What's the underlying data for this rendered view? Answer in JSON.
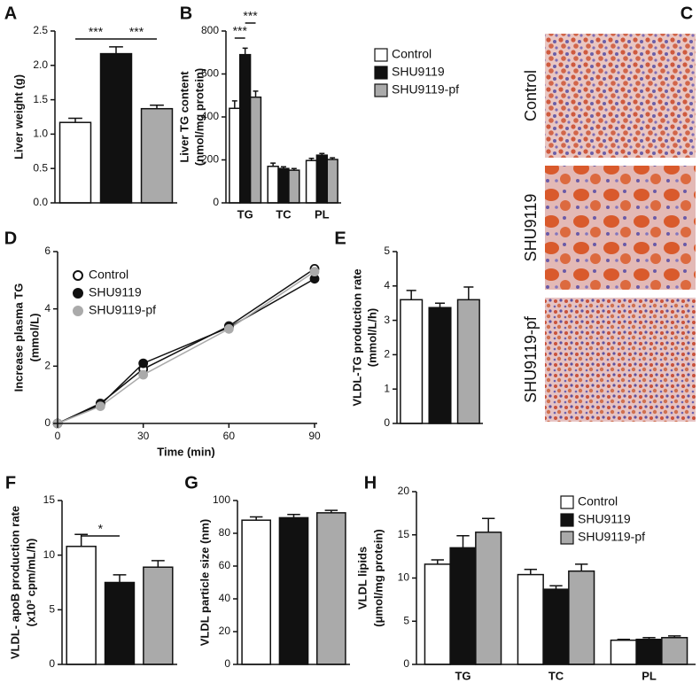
{
  "chart_data": [
    {
      "type": "bar",
      "panel": "A",
      "ylabel": [
        "Liver weight (g)"
      ],
      "categories": [
        null,
        null,
        null
      ],
      "values": [
        1.17,
        2.17,
        1.37
      ],
      "errors": [
        0.06,
        0.1,
        0.05
      ],
      "colors": [
        "#ffffff",
        "#111111",
        "#aaaaaa"
      ],
      "ylim": [
        0,
        2.5
      ],
      "yticks": [
        {
          "value": 0,
          "label": "0.0"
        },
        0.5,
        {
          "value": 1,
          "label": "1.0"
        },
        1.5,
        {
          "value": 2,
          "label": "2.0"
        },
        2.5
      ],
      "annotations": [
        "***",
        "***"
      ]
    },
    {
      "type": "groupedbar",
      "panel": "B",
      "ylabel": [
        "Liver TG content",
        "(nmol/mg protein)"
      ],
      "categories": [
        "TG",
        "TC",
        "PL"
      ],
      "series": [
        {
          "name": "Control",
          "color": "#ffffff",
          "values": [
            440,
            170,
            197
          ],
          "errors": [
            35,
            15,
            10
          ]
        },
        {
          "name": "SHU9119",
          "color": "#111111",
          "values": [
            690,
            160,
            222
          ],
          "errors": [
            30,
            8,
            8
          ]
        },
        {
          "name": "SHU9119-pf",
          "color": "#aaaaaa",
          "values": [
            492,
            152,
            202
          ],
          "errors": [
            28,
            8,
            8
          ]
        }
      ],
      "ylim": [
        0,
        800
      ],
      "yticks": [
        0,
        200,
        400,
        600,
        800
      ],
      "annotations": [
        "***",
        "***"
      ]
    },
    {
      "type": "image",
      "panel": "C",
      "labels": [
        "Control",
        "SHU9119",
        "SHU9119-pf"
      ]
    },
    {
      "type": "line",
      "panel": "D",
      "xlabel": "Time (min)",
      "ylabel": [
        "Increase plasma TG",
        "(mmol/L)"
      ],
      "x": [
        0,
        15,
        30,
        60,
        90
      ],
      "series": [
        {
          "name": "Control",
          "color": "#111111",
          "fill": "#ffffff",
          "values": [
            0,
            0.7,
            1.9,
            3.4,
            5.4
          ]
        },
        {
          "name": "SHU9119",
          "color": "#111111",
          "fill": "#111111",
          "values": [
            0,
            0.65,
            2.1,
            3.35,
            5.05
          ]
        },
        {
          "name": "SHU9119-pf",
          "color": "#aaaaaa",
          "fill": "#aaaaaa",
          "values": [
            0,
            0.6,
            1.7,
            3.3,
            5.3
          ]
        }
      ],
      "xlim": [
        0,
        90
      ],
      "xticks": [
        0,
        30,
        60,
        90
      ],
      "ylim": [
        0,
        6
      ],
      "yticks": [
        0,
        2,
        4,
        6
      ]
    },
    {
      "type": "bar",
      "panel": "E",
      "ylabel": [
        "VLDL-TG production rate",
        "(mmol/L/h)"
      ],
      "categories": [
        null,
        null,
        null
      ],
      "values": [
        3.6,
        3.37,
        3.6
      ],
      "errors": [
        0.27,
        0.13,
        0.37
      ],
      "colors": [
        "#ffffff",
        "#111111",
        "#aaaaaa"
      ],
      "ylim": [
        0,
        5
      ],
      "yticks": [
        0,
        1,
        2,
        3,
        4,
        5
      ],
      "annotations": []
    },
    {
      "type": "bar",
      "panel": "F",
      "ylabel": [
        "VLDL- apoB production rate",
        "(x10³ cpm/mL/h)"
      ],
      "categories": [
        null,
        null,
        null
      ],
      "values": [
        10.8,
        7.5,
        8.9
      ],
      "errors": [
        1.1,
        0.7,
        0.6
      ],
      "colors": [
        "#ffffff",
        "#111111",
        "#aaaaaa"
      ],
      "ylim": [
        0,
        15
      ],
      "yticks": [
        0,
        5,
        10,
        15
      ],
      "annotations": [
        "*"
      ]
    },
    {
      "type": "bar",
      "panel": "G",
      "ylabel": [
        "VLDL particle size (nm)"
      ],
      "categories": [
        null,
        null,
        null
      ],
      "values": [
        88,
        89.5,
        92.5
      ],
      "errors": [
        2,
        2,
        1.5
      ],
      "colors": [
        "#ffffff",
        "#111111",
        "#aaaaaa"
      ],
      "ylim": [
        0,
        100
      ],
      "yticks": [
        0,
        20,
        40,
        60,
        80,
        100
      ],
      "annotations": []
    },
    {
      "type": "groupedbar",
      "panel": "H",
      "ylabel": [
        "VLDL lipids",
        "(μmol/mg protein)"
      ],
      "categories": [
        "TG",
        "TC",
        "PL"
      ],
      "series": [
        {
          "name": "Control",
          "color": "#ffffff",
          "values": [
            11.6,
            10.4,
            2.8
          ],
          "errors": [
            0.5,
            0.6,
            0.1
          ]
        },
        {
          "name": "SHU9119",
          "color": "#111111",
          "values": [
            13.5,
            8.7,
            2.9
          ],
          "errors": [
            1.4,
            0.4,
            0.2
          ]
        },
        {
          "name": "SHU9119-pf",
          "color": "#aaaaaa",
          "values": [
            15.3,
            10.8,
            3.1
          ],
          "errors": [
            1.6,
            0.8,
            0.2
          ]
        }
      ],
      "ylim": [
        0,
        20
      ],
      "yticks": [
        0,
        5,
        10,
        15,
        20
      ],
      "annotations": []
    }
  ]
}
